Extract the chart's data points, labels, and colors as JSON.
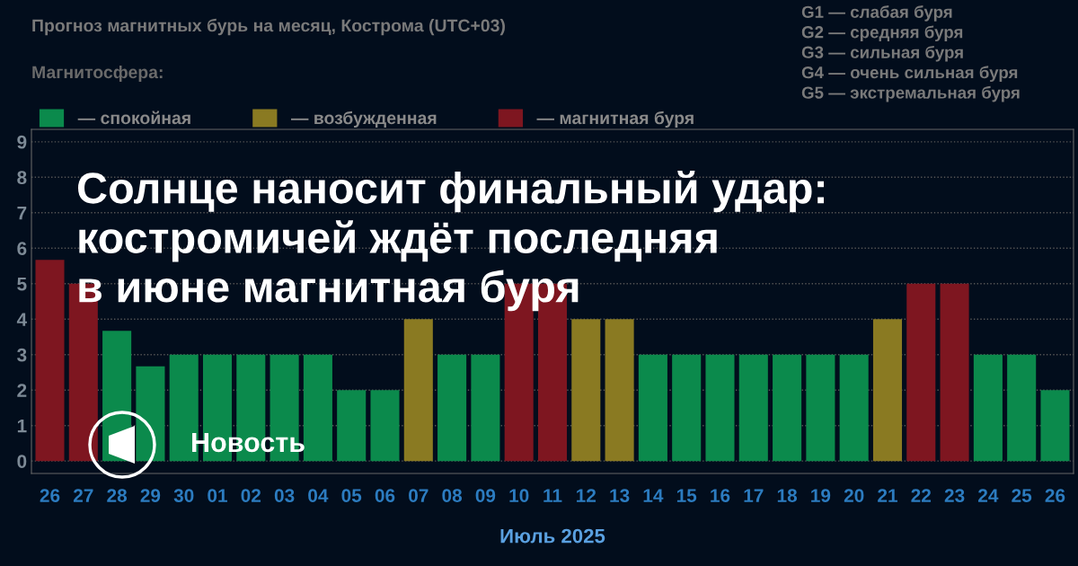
{
  "chart_data": {
    "type": "bar",
    "title": "Прогноз магнитных бурь на месяц, Кострома (UTC+03)",
    "subtitle": "Магнитосфера:",
    "xlabel": "Июль 2025",
    "categories": [
      "26",
      "27",
      "28",
      "29",
      "30",
      "01",
      "02",
      "03",
      "04",
      "05",
      "06",
      "07",
      "08",
      "09",
      "10",
      "11",
      "12",
      "13",
      "14",
      "15",
      "16",
      "17",
      "18",
      "19",
      "20",
      "21",
      "22",
      "23",
      "24",
      "25",
      "26"
    ],
    "series": [
      {
        "name": "— спокойная",
        "color": "#0b8a4c",
        "values": [
          null,
          null,
          3.67,
          2.67,
          3,
          3,
          3,
          3,
          3,
          2,
          2,
          null,
          3,
          3,
          null,
          null,
          null,
          null,
          3,
          3,
          3,
          3,
          3,
          3,
          3,
          null,
          null,
          null,
          3,
          3,
          2
        ]
      },
      {
        "name": "— возбужденная",
        "color": "#8a7a22",
        "values": [
          null,
          null,
          null,
          null,
          null,
          null,
          null,
          null,
          null,
          null,
          null,
          4,
          null,
          null,
          null,
          null,
          4,
          4,
          null,
          null,
          null,
          null,
          null,
          null,
          null,
          4,
          null,
          null,
          null,
          null,
          null
        ]
      },
      {
        "name": "— магнитная буря",
        "color": "#7e1620",
        "values": [
          5.67,
          5,
          null,
          null,
          null,
          null,
          null,
          null,
          null,
          null,
          null,
          null,
          null,
          null,
          5,
          5,
          null,
          null,
          null,
          null,
          null,
          null,
          null,
          null,
          null,
          null,
          5,
          5,
          null,
          null,
          null
        ]
      }
    ],
    "ylim": [
      -0.35,
      9.35
    ],
    "yticks": [
      0,
      1,
      2,
      3,
      4,
      5,
      6,
      7,
      8,
      9
    ],
    "grid": "y",
    "legend": "top left",
    "annotations": [
      "G1 — слабая буря\nG2 — средняя буря\nG3 — сильная буря\nG4 — очень сильная буря\nG5 — экстремальная буря",
      "Солнце наносит финальный удар:\nкостромичей ждёт последняя\nв июне магнитная буря",
      "Новость"
    ]
  }
}
